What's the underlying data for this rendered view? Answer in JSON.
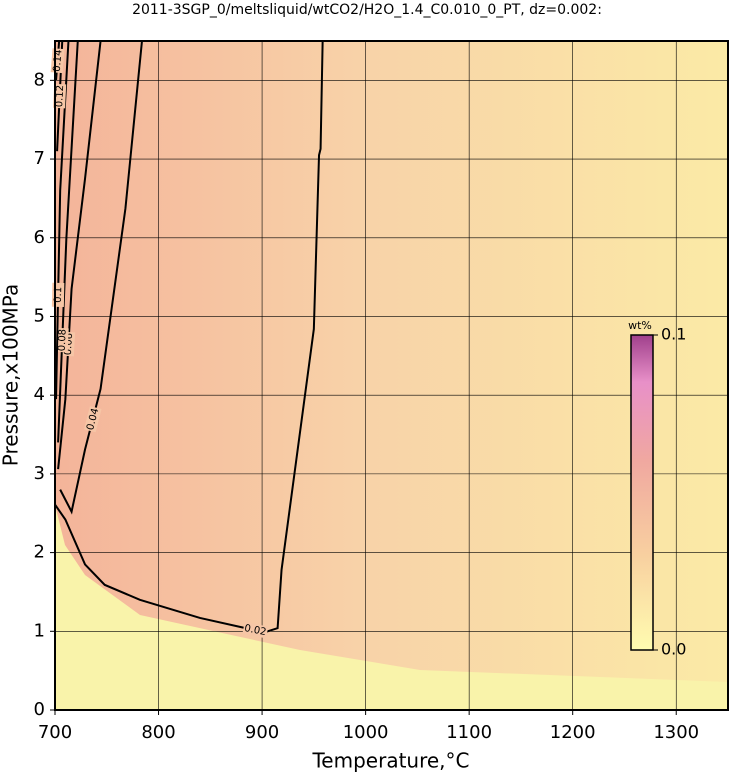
{
  "chart_data": {
    "type": "contour",
    "title": "2011-3SGP_0/meltsliquid/wtCO2/H2O_1.4_C0.010_0_PT, dz=0.002:",
    "x_label": "Temperature,°C",
    "y_label": "Pressure,x100MPa",
    "xlim": [
      700,
      1350
    ],
    "ylim": [
      0,
      8.5
    ],
    "xticks": [
      700,
      800,
      900,
      1000,
      1100,
      1200,
      1300
    ],
    "yticks": [
      0,
      1,
      2,
      3,
      4,
      5,
      6,
      7,
      8
    ],
    "grid": true,
    "colorbar": {
      "label": "wt%",
      "lim": [
        0,
        0.1
      ],
      "ticks": [
        {
          "value": 0,
          "label": "0.0"
        },
        0.1
      ]
    },
    "series": [
      {
        "name": "0.02",
        "color": "#000000",
        "x": [
          958.5,
          956.5,
          955,
          950,
          918.8,
          915,
          903,
          884,
          840,
          782,
          748,
          729,
          710,
          700
        ],
        "y": [
          8.5,
          7.13,
          7.05,
          4.84,
          1.78,
          1.04,
          0.99,
          1.04,
          1.17,
          1.4,
          1.59,
          1.85,
          2.42,
          2.61
        ]
      },
      {
        "name": "0.04",
        "color": "#000000",
        "x": [
          784,
          768,
          744,
          729,
          716,
          705
        ],
        "y": [
          8.5,
          6.37,
          4.08,
          3.31,
          2.52,
          2.8
        ]
      },
      {
        "name": "0.06",
        "color": "#000000",
        "x": [
          744,
          729,
          716,
          710,
          703
        ],
        "y": [
          8.5,
          6.75,
          5.35,
          3.95,
          3.06
        ]
      },
      {
        "name": "0.08",
        "color": "#000000",
        "x": [
          722,
          711,
          703
        ],
        "y": [
          8.5,
          6.0,
          3.4
        ]
      },
      {
        "name": "0.1",
        "color": "#000000",
        "x": [
          713,
          705,
          701
        ],
        "y": [
          8.5,
          6.6,
          3.95
        ]
      },
      {
        "name": "0.12",
        "color": "#000000",
        "x": [
          707,
          702
        ],
        "y": [
          8.5,
          7.1
        ]
      },
      {
        "name": "0.14",
        "color": "#000000",
        "x": [
          704,
          701
        ],
        "y": [
          8.5,
          8.0
        ]
      }
    ]
  }
}
